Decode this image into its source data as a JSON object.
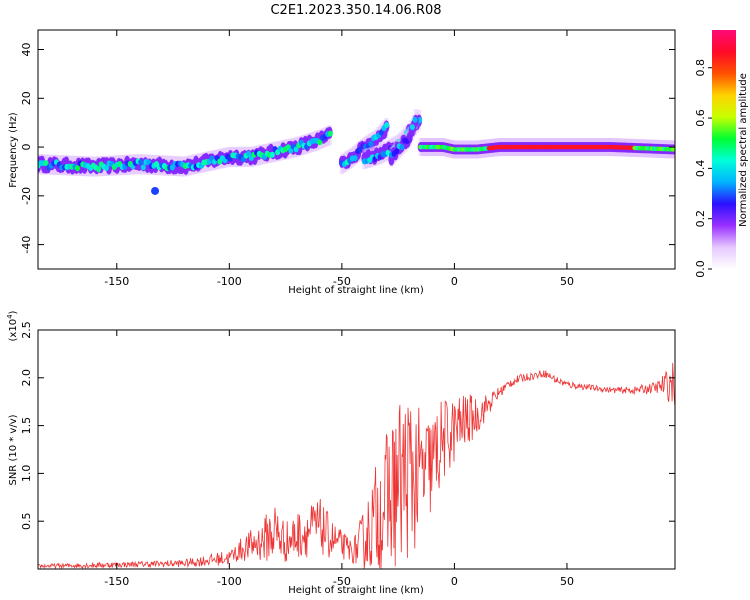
{
  "figure_title": "C2E1.2023.350.14.06.R08",
  "chart_data": [
    {
      "type": "heatmap",
      "title": "C2E1.2023.350.14.06.R08",
      "xlabel": "Height of straight line (km)",
      "ylabel": "Frequency (Hz)",
      "xlim": [
        -185,
        98
      ],
      "ylim": [
        -50,
        48
      ],
      "xticks": [
        -150,
        -100,
        -50,
        0,
        50
      ],
      "xtick_labels": [
        "-150",
        "-100",
        "-50",
        "0",
        "50"
      ],
      "yticks": [
        -40,
        -20,
        0,
        20,
        40
      ],
      "ytick_labels": [
        "-40",
        "-20",
        "0",
        "20",
        "40"
      ],
      "colorbar": {
        "label": "Normalized spectral amplitude",
        "range": [
          0.0,
          0.95
        ],
        "ticks": [
          0.0,
          0.2,
          0.4,
          0.6,
          0.8
        ],
        "tick_labels": [
          "0.0",
          "0.2",
          "0.4",
          "0.6",
          "0.8"
        ],
        "colors": [
          "#ffffff",
          "#e6c8ff",
          "#9a30ff",
          "#2a10ff",
          "#00b4ff",
          "#00ffd8",
          "#00ff30",
          "#c8ff00",
          "#ffd200",
          "#ff5000",
          "#ff0a28",
          "#ff0a78"
        ]
      },
      "ridges": [
        {
          "name": "main-trace",
          "height_km": [
            -185,
            -160,
            -140,
            -120,
            -100,
            -90,
            -80,
            -70,
            -60,
            -55
          ],
          "frequency_hz": [
            -7,
            -8,
            -7,
            -8,
            -4,
            -4,
            -2,
            0,
            3,
            5
          ],
          "amplitude": 0.45
        },
        {
          "name": "branch-1",
          "height_km": [
            -50,
            -45,
            -40,
            -35,
            -30
          ],
          "frequency_hz": [
            -7,
            -4,
            0,
            3,
            8
          ],
          "amplitude": 0.4
        },
        {
          "name": "branch-2",
          "height_km": [
            -40,
            -33,
            -25,
            -20,
            -15
          ],
          "frequency_hz": [
            -5,
            -3,
            1,
            6,
            12
          ],
          "amplitude": 0.4
        },
        {
          "name": "branch-3",
          "height_km": [
            -28,
            -24,
            -20,
            -17
          ],
          "frequency_hz": [
            -4,
            0,
            4,
            12
          ],
          "amplitude": 0.35
        },
        {
          "name": "flat-trace",
          "height_km": [
            -15,
            -5,
            0,
            10,
            20,
            50,
            70,
            98
          ],
          "frequency_hz": [
            0,
            0,
            -1,
            -1,
            0,
            0,
            0,
            -1
          ],
          "amplitude": 0.9
        }
      ],
      "spots": [
        {
          "height_km": -133,
          "frequency_hz": -18,
          "amplitude": 0.3
        }
      ]
    },
    {
      "type": "line",
      "xlabel": "Height of straight line (km)",
      "ylabel": "SNR (10 * v/v)",
      "y_multiplier_label": "(x10",
      "y_multiplier_exponent": "4",
      "y_multiplier_close": ")",
      "xlim": [
        -185,
        98
      ],
      "ylim": [
        0,
        2.5
      ],
      "xticks": [
        -150,
        -100,
        -50,
        0,
        50
      ],
      "xtick_labels": [
        "-150",
        "-100",
        "-50",
        "0",
        "50"
      ],
      "yticks": [
        0.5,
        1.0,
        1.5,
        2.0,
        2.5
      ],
      "ytick_labels": [
        "0.5",
        "1.0",
        "1.5",
        "2.0",
        "2.5"
      ],
      "color": "#ee3333",
      "series": [
        {
          "name": "SNR",
          "x": [
            -185,
            -160,
            -140,
            -120,
            -100,
            -95,
            -85,
            -80,
            -75,
            -70,
            -60,
            -55,
            -50,
            -45,
            -40,
            -35,
            -30,
            -25,
            -20,
            -15,
            -10,
            -5,
            0,
            5,
            10,
            15,
            20,
            25,
            30,
            35,
            40,
            45,
            50,
            60,
            70,
            80,
            90,
            98
          ],
          "y": [
            0.03,
            0.04,
            0.05,
            0.06,
            0.12,
            0.2,
            0.3,
            0.4,
            0.28,
            0.35,
            0.45,
            0.32,
            0.25,
            0.18,
            0.3,
            0.55,
            0.7,
            0.9,
            1.0,
            0.95,
            1.1,
            1.35,
            1.45,
            1.55,
            1.6,
            1.72,
            1.85,
            1.95,
            2.0,
            2.02,
            2.05,
            1.98,
            1.93,
            1.9,
            1.87,
            1.87,
            1.9,
            1.95
          ],
          "noise": [
            0.02,
            0.03,
            0.03,
            0.04,
            0.08,
            0.12,
            0.22,
            0.35,
            0.22,
            0.25,
            0.3,
            0.22,
            0.15,
            0.12,
            0.35,
            0.55,
            0.75,
            0.9,
            0.9,
            0.7,
            0.55,
            0.45,
            0.35,
            0.3,
            0.2,
            0.12,
            0.06,
            0.05,
            0.04,
            0.04,
            0.04,
            0.04,
            0.04,
            0.03,
            0.03,
            0.04,
            0.06,
            0.25
          ]
        }
      ]
    }
  ]
}
